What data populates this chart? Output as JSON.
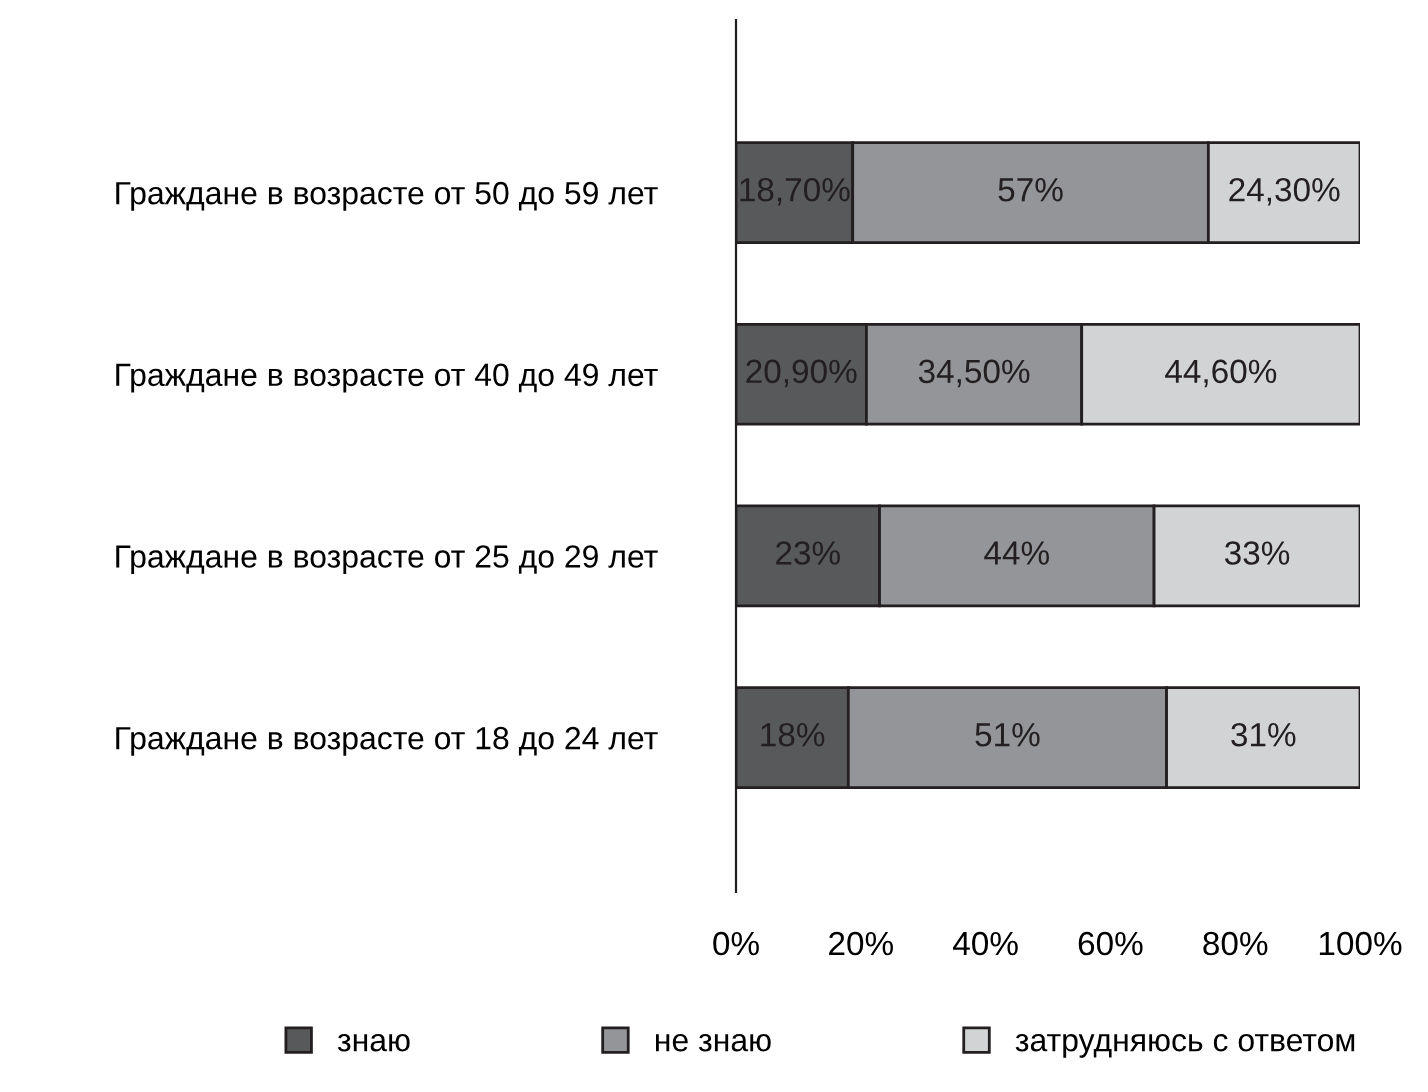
{
  "chart_data": {
    "type": "bar",
    "orientation": "horizontal",
    "stacked": true,
    "categories": [
      "Граждане в возрасте от 50 до 59 лет",
      "Граждане в возрасте от 40 до 49 лет",
      "Граждане в возрасте от 25 до 29 лет",
      "Граждане в возрасте от 18 до 24 лет"
    ],
    "series": [
      {
        "name": "знаю",
        "color": "#58595b",
        "values": [
          18.7,
          20.9,
          23,
          18
        ],
        "value_labels": [
          "18,70%",
          "20,90%",
          "23%",
          "18%"
        ]
      },
      {
        "name": "не знаю",
        "color": "#939598",
        "values": [
          57,
          34.5,
          44,
          51
        ],
        "value_labels": [
          "57%",
          "34,50%",
          "44%",
          "51%"
        ]
      },
      {
        "name": "затрудняюсь с ответом",
        "color": "#d1d3d4",
        "values": [
          24.3,
          44.6,
          33,
          31
        ],
        "value_labels": [
          "24,30%",
          "44,60%",
          "33%",
          "31%"
        ]
      }
    ],
    "xlim": [
      0,
      100
    ],
    "xticks": [
      {
        "value": 0,
        "label": "0%"
      },
      {
        "value": 20,
        "label": "20%"
      },
      {
        "value": 40,
        "label": "40%"
      },
      {
        "value": 60,
        "label": "60%"
      },
      {
        "value": 80,
        "label": "80%"
      },
      {
        "value": 100,
        "label": "100%"
      }
    ],
    "grid": false,
    "legend": "bottom"
  }
}
